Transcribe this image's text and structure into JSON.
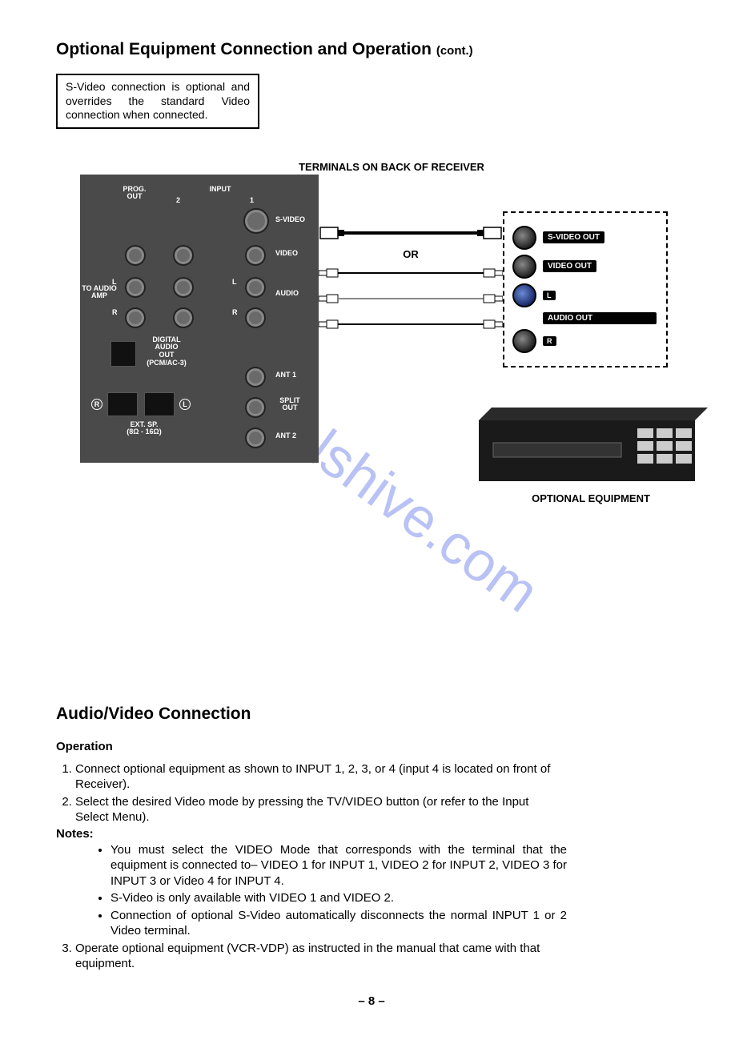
{
  "page_title": "Optional Equipment Connection and Operation",
  "page_title_suffix": "(cont.)",
  "note_box": "S-Video connection is optional and overrides the standard Video connection when connected.",
  "terminals_label": "TERMINALS ON BACK OF RECEIVER",
  "receiver_panel": {
    "labels": {
      "prog_out": "PROG.\nOUT",
      "input": "INPUT",
      "input_2": "2",
      "input_1": "1",
      "svideo": "S-VIDEO",
      "video": "VIDEO",
      "l": "L",
      "r": "R",
      "to_audio_amp": "TO AUDIO\nAMP",
      "audio": "AUDIO",
      "digital_audio": "DIGITAL\nAUDIO\nOUT\n(PCM/AC-3)",
      "ant1": "ANT 1",
      "split_out": "SPLIT\nOUT",
      "ant2": "ANT 2",
      "ext_sp": "EXT. SP.\n(8Ω - 16Ω)",
      "sp_r": "R",
      "sp_l": "L"
    }
  },
  "or_text": "OR",
  "output_panel": {
    "svideo_out": "S-VIDEO OUT",
    "video_out": "VIDEO OUT",
    "l": "L",
    "audio_out": "AUDIO OUT",
    "r": "R"
  },
  "equipment_caption": "OPTIONAL EQUIPMENT",
  "section2_title": "Audio/Video Connection",
  "operation_heading": "Operation",
  "steps": [
    "Connect optional equipment as shown to INPUT 1, 2, 3, or 4 (input 4 is located on front of Receiver).",
    "Select the desired Video mode by pressing the TV/VIDEO button (or refer to the Input Select Menu)."
  ],
  "notes_heading": "Notes:",
  "notes": [
    "You must select the VIDEO Mode that corresponds with the terminal that the equipment is connected to– VIDEO 1 for INPUT 1, VIDEO 2 for INPUT 2, VIDEO 3 for INPUT 3 or Video 4 for INPUT 4.",
    "S-Video is only available with VIDEO 1 and VIDEO 2.",
    "Connection of optional S-Video automatically disconnects the normal INPUT 1 or 2 Video terminal."
  ],
  "step3": "Operate optional equipment (VCR-VDP) as instructed in the manual that came with that equipment.",
  "page_number": "– 8 –",
  "watermark": "manualshive.com",
  "colors": {
    "panel_bg": "#4a4a4a",
    "label_bg": "#000000",
    "label_fg": "#ffffff",
    "watermark": "rgba(100,120,230,0.45)"
  }
}
